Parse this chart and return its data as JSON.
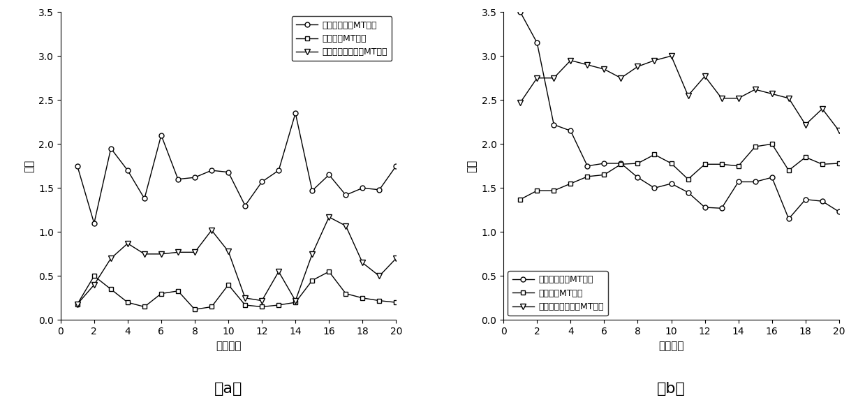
{
  "x": [
    1,
    2,
    3,
    4,
    5,
    6,
    7,
    8,
    9,
    10,
    11,
    12,
    13,
    14,
    15,
    16,
    17,
    18,
    19,
    20
  ],
  "a_circle": [
    1.75,
    1.1,
    1.95,
    1.7,
    1.38,
    2.1,
    1.6,
    1.62,
    1.7,
    1.68,
    1.3,
    1.57,
    1.7,
    2.35,
    1.47,
    1.65,
    1.42,
    1.5,
    1.48,
    1.75
  ],
  "a_square": [
    0.18,
    0.5,
    0.35,
    0.2,
    0.15,
    0.3,
    0.33,
    0.12,
    0.15,
    0.4,
    0.17,
    0.15,
    0.17,
    0.2,
    0.45,
    0.55,
    0.3,
    0.25,
    0.22,
    0.2
  ],
  "a_triangle": [
    0.18,
    0.4,
    0.7,
    0.87,
    0.75,
    0.75,
    0.77,
    0.77,
    1.02,
    0.78,
    0.25,
    0.22,
    0.55,
    0.22,
    0.75,
    1.17,
    1.07,
    0.65,
    0.5,
    0.7
  ],
  "b_circle": [
    3.5,
    3.15,
    2.22,
    2.15,
    1.75,
    1.78,
    1.78,
    1.62,
    1.5,
    1.55,
    1.45,
    1.28,
    1.27,
    1.57,
    1.57,
    1.62,
    1.15,
    1.37,
    1.35,
    1.23
  ],
  "b_square": [
    1.37,
    1.47,
    1.47,
    1.55,
    1.63,
    1.65,
    1.77,
    1.78,
    1.88,
    1.78,
    1.6,
    1.77,
    1.77,
    1.75,
    1.97,
    2.0,
    1.7,
    1.85,
    1.77,
    1.78
  ],
  "b_triangle": [
    2.47,
    2.75,
    2.75,
    2.95,
    2.9,
    2.85,
    2.75,
    2.88,
    2.95,
    3.0,
    2.55,
    2.77,
    2.52,
    2.52,
    2.62,
    2.57,
    2.52,
    2.22,
    2.4,
    2.15
  ],
  "ylabel": "熵値",
  "xlabel": "尺度因子",
  "legend_circle": "未受到干扰的MT信号",
  "legend_square": "方波干扰MT信号",
  "legend_triangle": "充放电三角波干扰MT信号",
  "label_a": "（a）",
  "label_b": "（b）",
  "ylim_a": [
    0,
    3.5
  ],
  "ylim_b": [
    0,
    3.5
  ],
  "yticks_a": [
    0,
    0.5,
    1.0,
    1.5,
    2.0,
    2.5,
    3.0,
    3.5
  ],
  "yticks_b": [
    0,
    0.5,
    1.0,
    1.5,
    2.0,
    2.5,
    3.0,
    3.5
  ],
  "xlim": [
    0,
    20
  ],
  "xticks": [
    0,
    2,
    4,
    6,
    8,
    10,
    12,
    14,
    16,
    18,
    20
  ]
}
